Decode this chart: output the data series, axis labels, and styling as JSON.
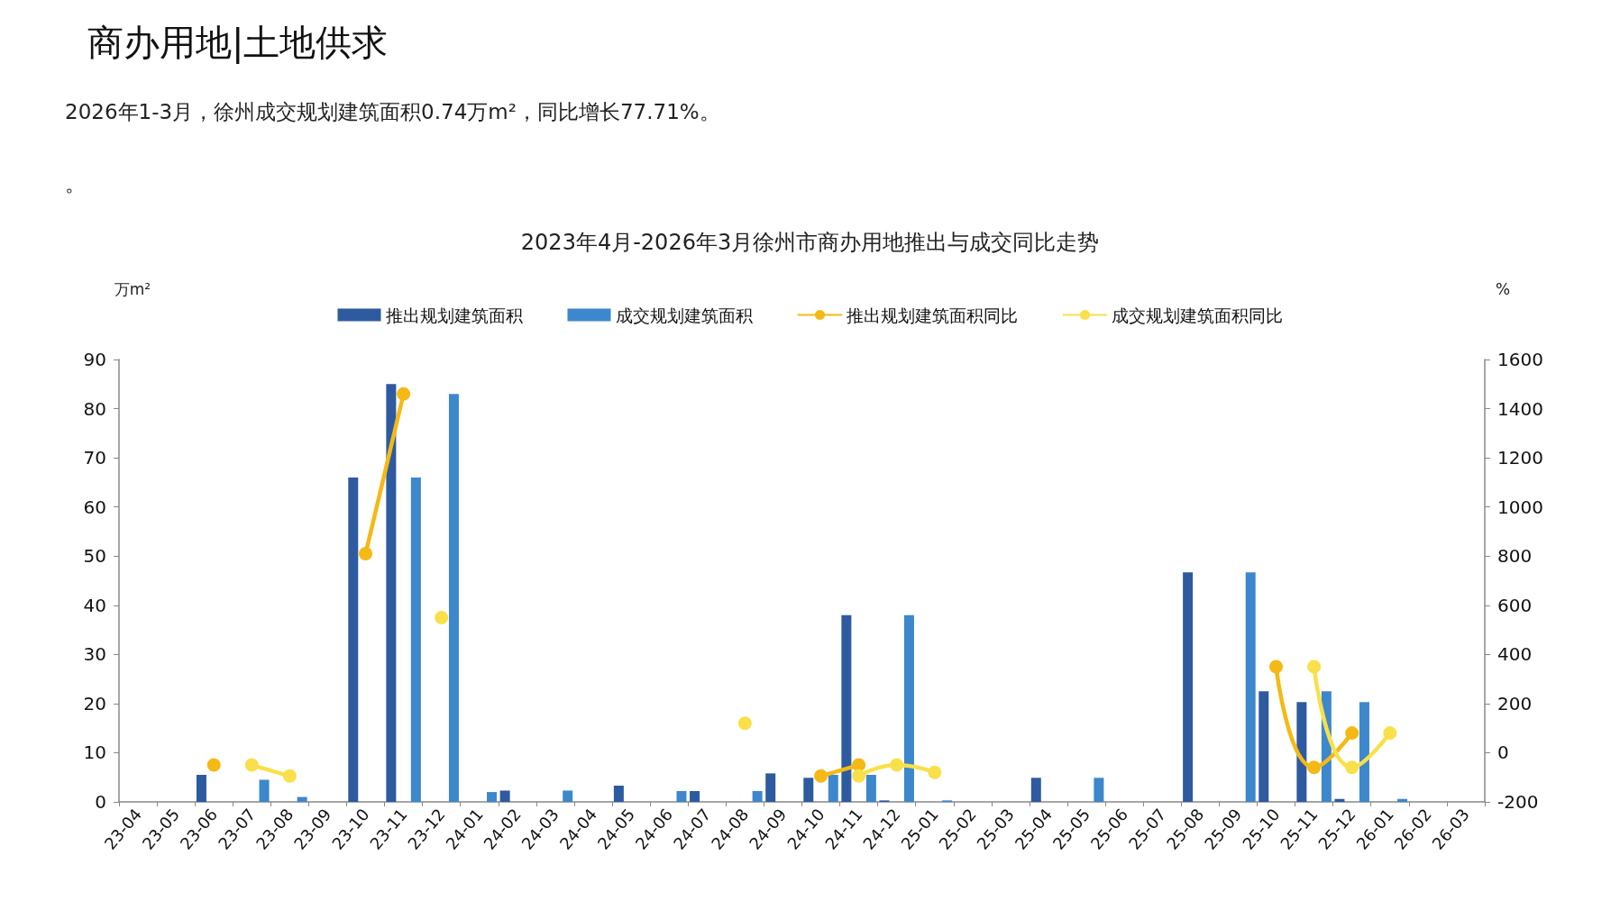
{
  "chart_data": {
    "type": "bar",
    "title": "商办用地|土地供求",
    "subtitle": "2023年4月-2026年3月徐州市商办用地推出与成交同比走势",
    "annotations": [
      "2026年1-3月，徐州成交规划建筑面积0.74万m²，同比增长77.71%。",
      "。"
    ],
    "ylabel": "万m²",
    "y2label": "%",
    "categories": [
      "23-04",
      "23-05",
      "23-06",
      "23-07",
      "23-08",
      "23-09",
      "23-10",
      "23-11",
      "23-12",
      "24-01",
      "24-02",
      "24-03",
      "24-04",
      "24-05",
      "24-06",
      "24-07",
      "24-08",
      "24-09",
      "24-10",
      "24-11",
      "24-12",
      "25-01",
      "25-02",
      "25-03",
      "25-04",
      "25-05",
      "25-06",
      "25-07",
      "25-08",
      "25-09",
      "25-10",
      "25-11",
      "25-12",
      "26-01",
      "26-02",
      "26-03"
    ],
    "series": [
      {
        "name": "推出规划建筑面积",
        "color": "#2e5aa0",
        "values": [
          null,
          null,
          5.5,
          null,
          null,
          null,
          66,
          85,
          null,
          null,
          2.3,
          null,
          null,
          3.3,
          null,
          2.2,
          null,
          5.8,
          4.9,
          38,
          0.3,
          null,
          null,
          null,
          4.9,
          null,
          null,
          null,
          46.7,
          null,
          22.5,
          20.3,
          0.6,
          null,
          null,
          null
        ]
      },
      {
        "name": "成交规划建筑面积",
        "color": "#3d87cc",
        "values": [
          null,
          null,
          null,
          4.5,
          1,
          null,
          null,
          66,
          83,
          2,
          null,
          2.3,
          null,
          null,
          2.2,
          null,
          2.2,
          null,
          5.5,
          5.5,
          38,
          0.3,
          null,
          null,
          null,
          4.9,
          null,
          null,
          null,
          46.7,
          null,
          22.5,
          20.3,
          0.6,
          null,
          null
        ]
      },
      {
        "name": "推出规划建筑面积同比",
        "type": "line",
        "axis": "y2",
        "color": "#f5b915",
        "values": [
          null,
          null,
          -50,
          null,
          null,
          null,
          810,
          1460,
          null,
          null,
          null,
          null,
          null,
          null,
          null,
          null,
          null,
          null,
          -95,
          -50,
          null,
          null,
          null,
          null,
          null,
          null,
          null,
          null,
          null,
          null,
          350,
          -60,
          80,
          null,
          null,
          null
        ]
      },
      {
        "name": "成交规划建筑面积同比",
        "type": "line",
        "axis": "y2",
        "color": "#f9e04a",
        "values": [
          null,
          null,
          null,
          -50,
          -95,
          null,
          null,
          null,
          550,
          null,
          null,
          null,
          null,
          null,
          null,
          null,
          120,
          null,
          null,
          -95,
          -50,
          -80,
          null,
          null,
          null,
          null,
          null,
          null,
          null,
          null,
          null,
          350,
          -60,
          80,
          null,
          null
        ]
      }
    ],
    "ylim": [
      0,
      90
    ],
    "yticks": [
      0,
      10,
      20,
      30,
      40,
      50,
      60,
      70,
      80,
      90
    ],
    "y2lim": [
      -200,
      1600
    ],
    "y2ticks": [
      -200,
      0,
      200,
      400,
      600,
      800,
      1000,
      1200,
      1400,
      1600
    ],
    "marker": "circle",
    "legend": "top",
    "grid": false
  }
}
